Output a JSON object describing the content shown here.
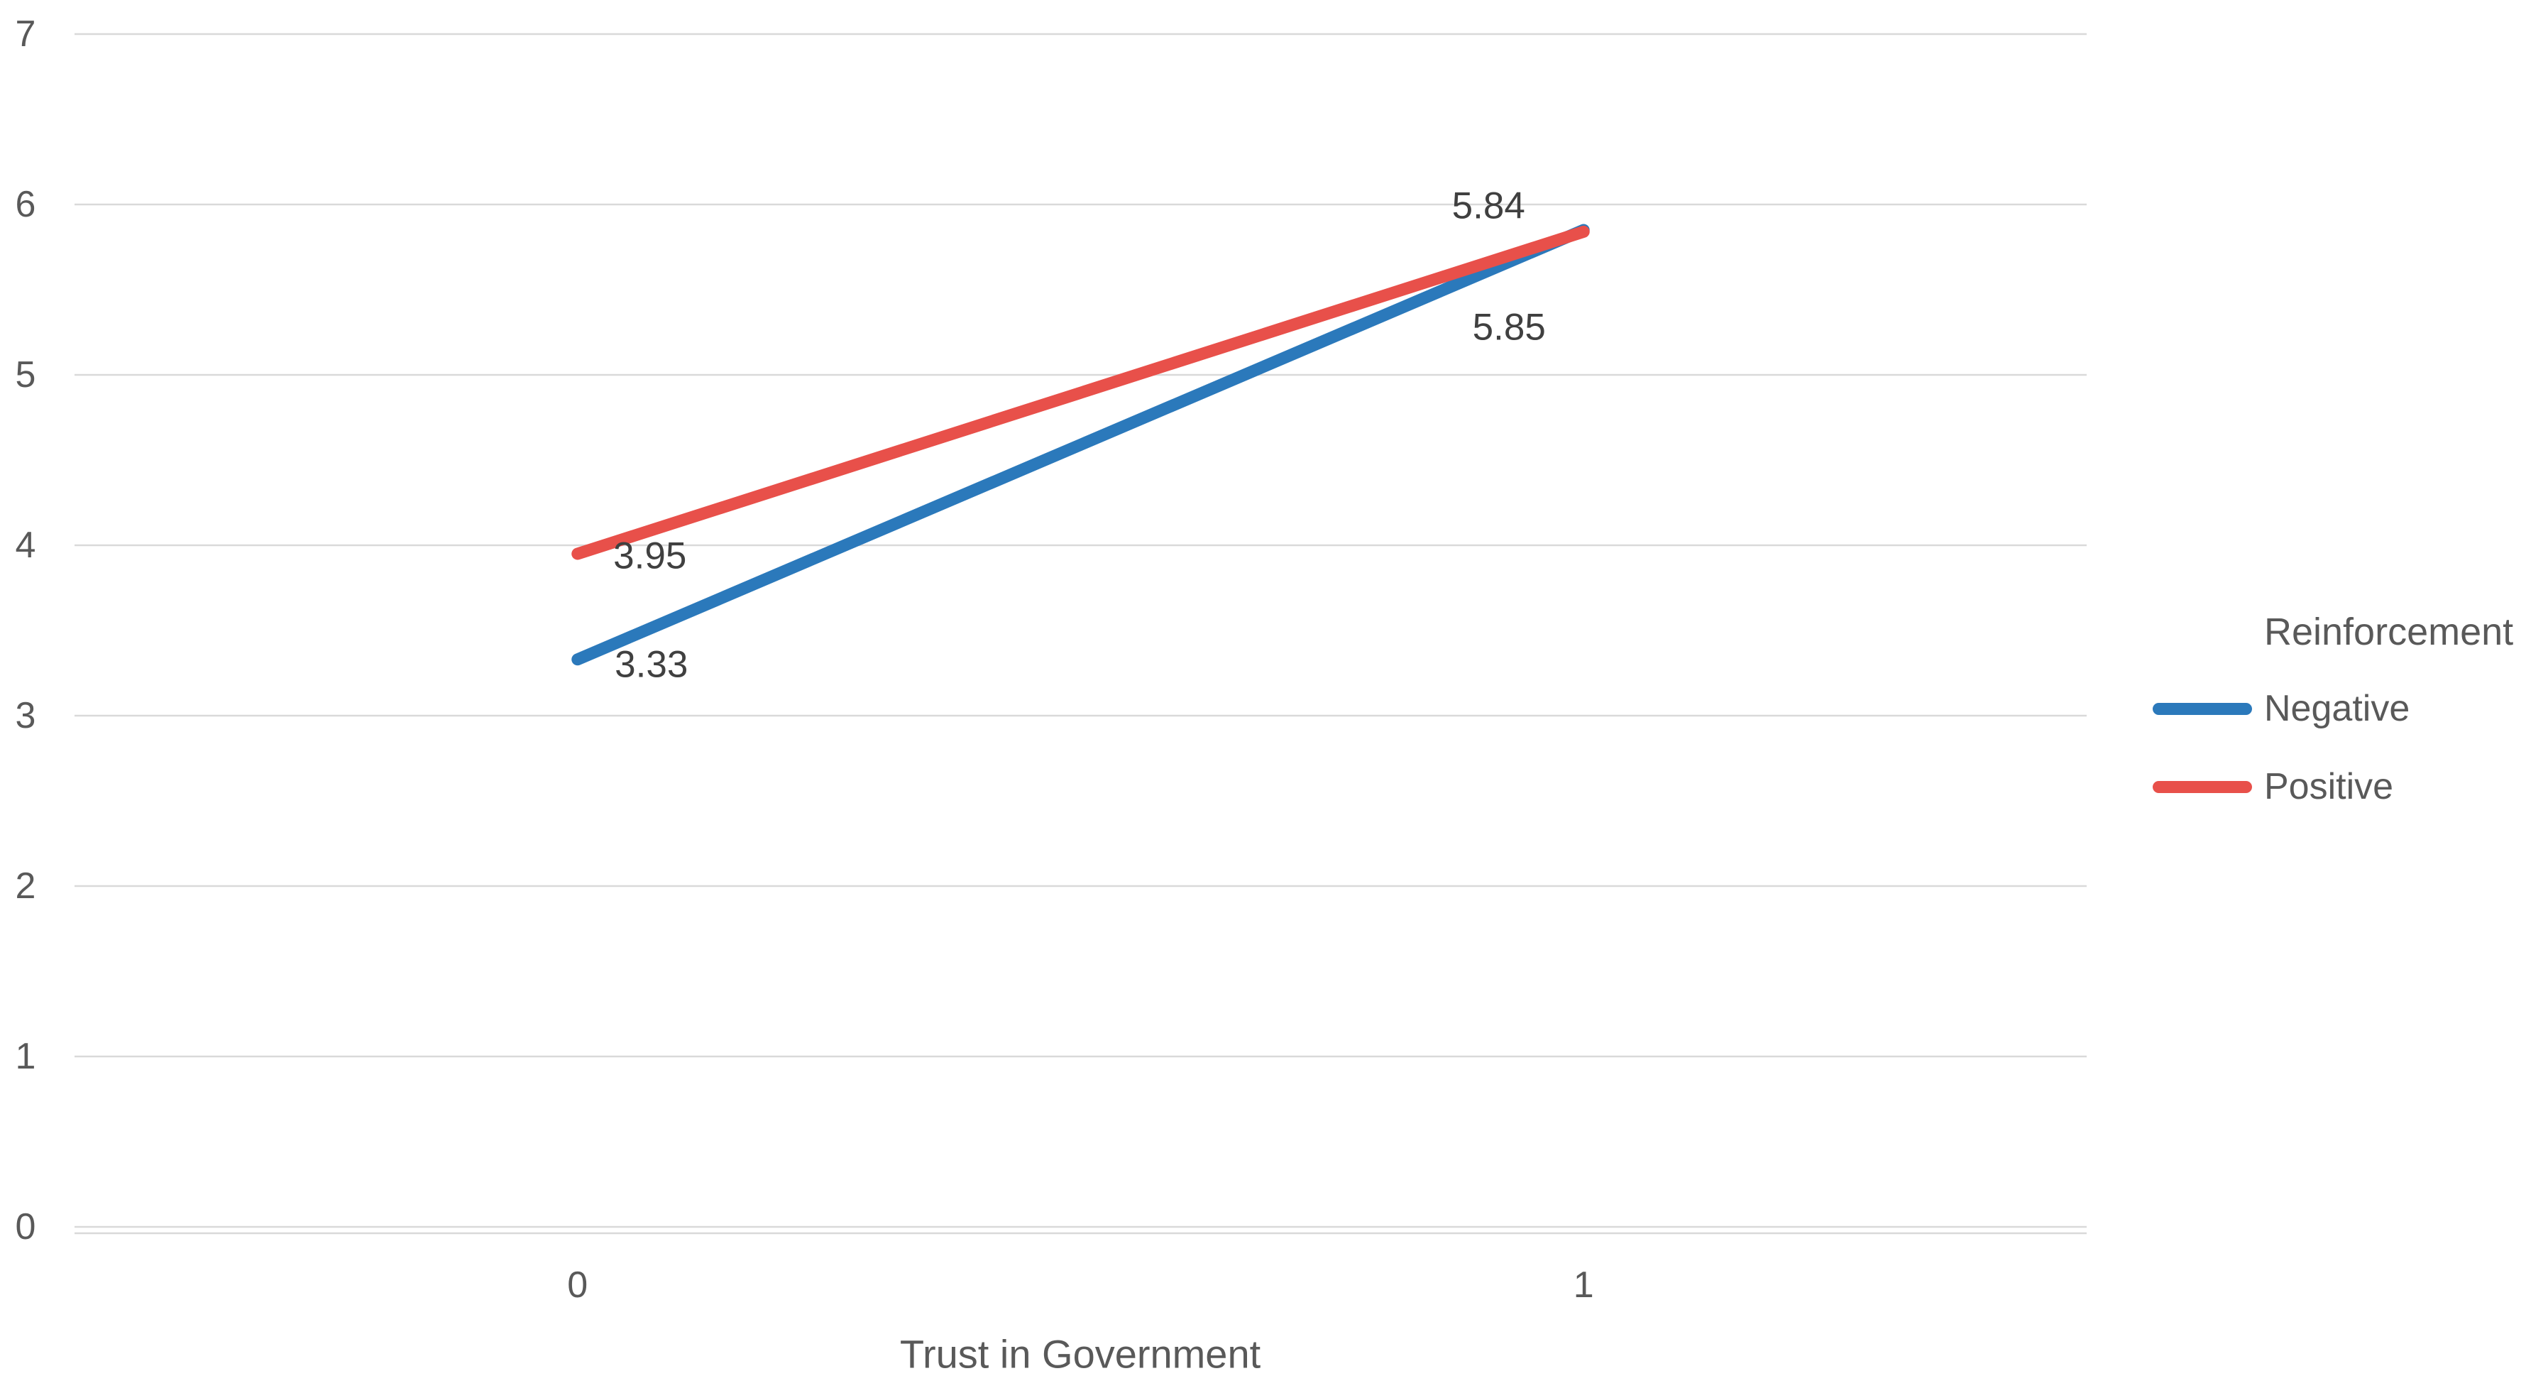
{
  "chart_data": {
    "type": "line",
    "title": "",
    "categories": [
      "0",
      "1"
    ],
    "series": [
      {
        "name": "Negative",
        "color": "#2B79BB",
        "values": [
          3.33,
          5.85
        ],
        "data_labels": [
          "3.33",
          "5.85"
        ],
        "label_offsets": [
          [
            104,
            7
          ],
          [
            -105,
            137
          ]
        ]
      },
      {
        "name": "Positive",
        "color": "#E8504A",
        "values": [
          3.95,
          5.84
        ],
        "data_labels": [
          "3.95",
          "5.84"
        ],
        "label_offsets": [
          [
            102,
            3
          ],
          [
            -134,
            -36
          ]
        ]
      }
    ],
    "xlabel": "Trust in Government",
    "ylabel": "",
    "ylim": [
      0,
      7
    ],
    "yticks": [
      "0",
      "1",
      "2",
      "3",
      "4",
      "5",
      "6",
      "7"
    ],
    "grid": true,
    "legend": {
      "title": "Reinforcement",
      "position": "right",
      "entries": [
        "Negative",
        "Positive"
      ]
    }
  },
  "colors": {
    "background": "#FFFFFF",
    "gridline": "#D9D9D9",
    "axis_line": "#D9D9D9",
    "tick_text": "#595959",
    "data_label_text": "#404040",
    "negative_line": "#2B79BB",
    "positive_line": "#E8504A"
  }
}
